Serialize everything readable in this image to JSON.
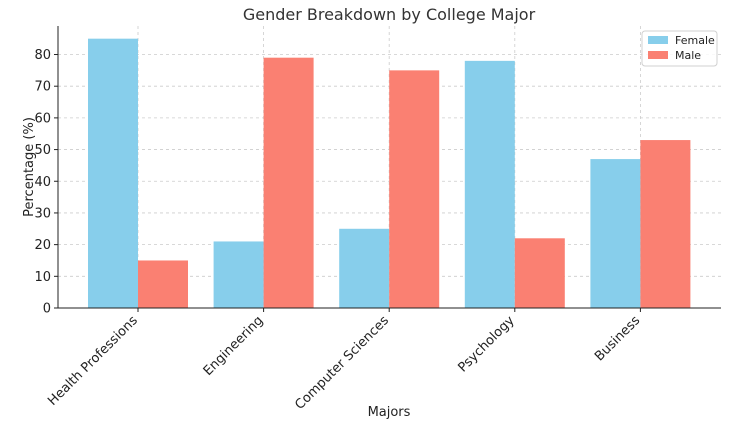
{
  "chart_data": {
    "type": "bar",
    "title": "Gender Breakdown by College Major",
    "xlabel": "Majors",
    "ylabel": "Percentage (%)",
    "categories": [
      "Health Professions",
      "Engineering",
      "Computer Sciences",
      "Psychology",
      "Business"
    ],
    "series": [
      {
        "name": "Female",
        "values": [
          85,
          21,
          25,
          78,
          47
        ],
        "color": "#87ceeb"
      },
      {
        "name": "Male",
        "values": [
          15,
          79,
          75,
          22,
          53
        ],
        "color": "#fa8072"
      }
    ],
    "ylim": [
      0,
      89
    ],
    "yticks": [
      0,
      10,
      20,
      30,
      40,
      50,
      60,
      70,
      80
    ],
    "grid": true,
    "legend_position": "top-right"
  }
}
